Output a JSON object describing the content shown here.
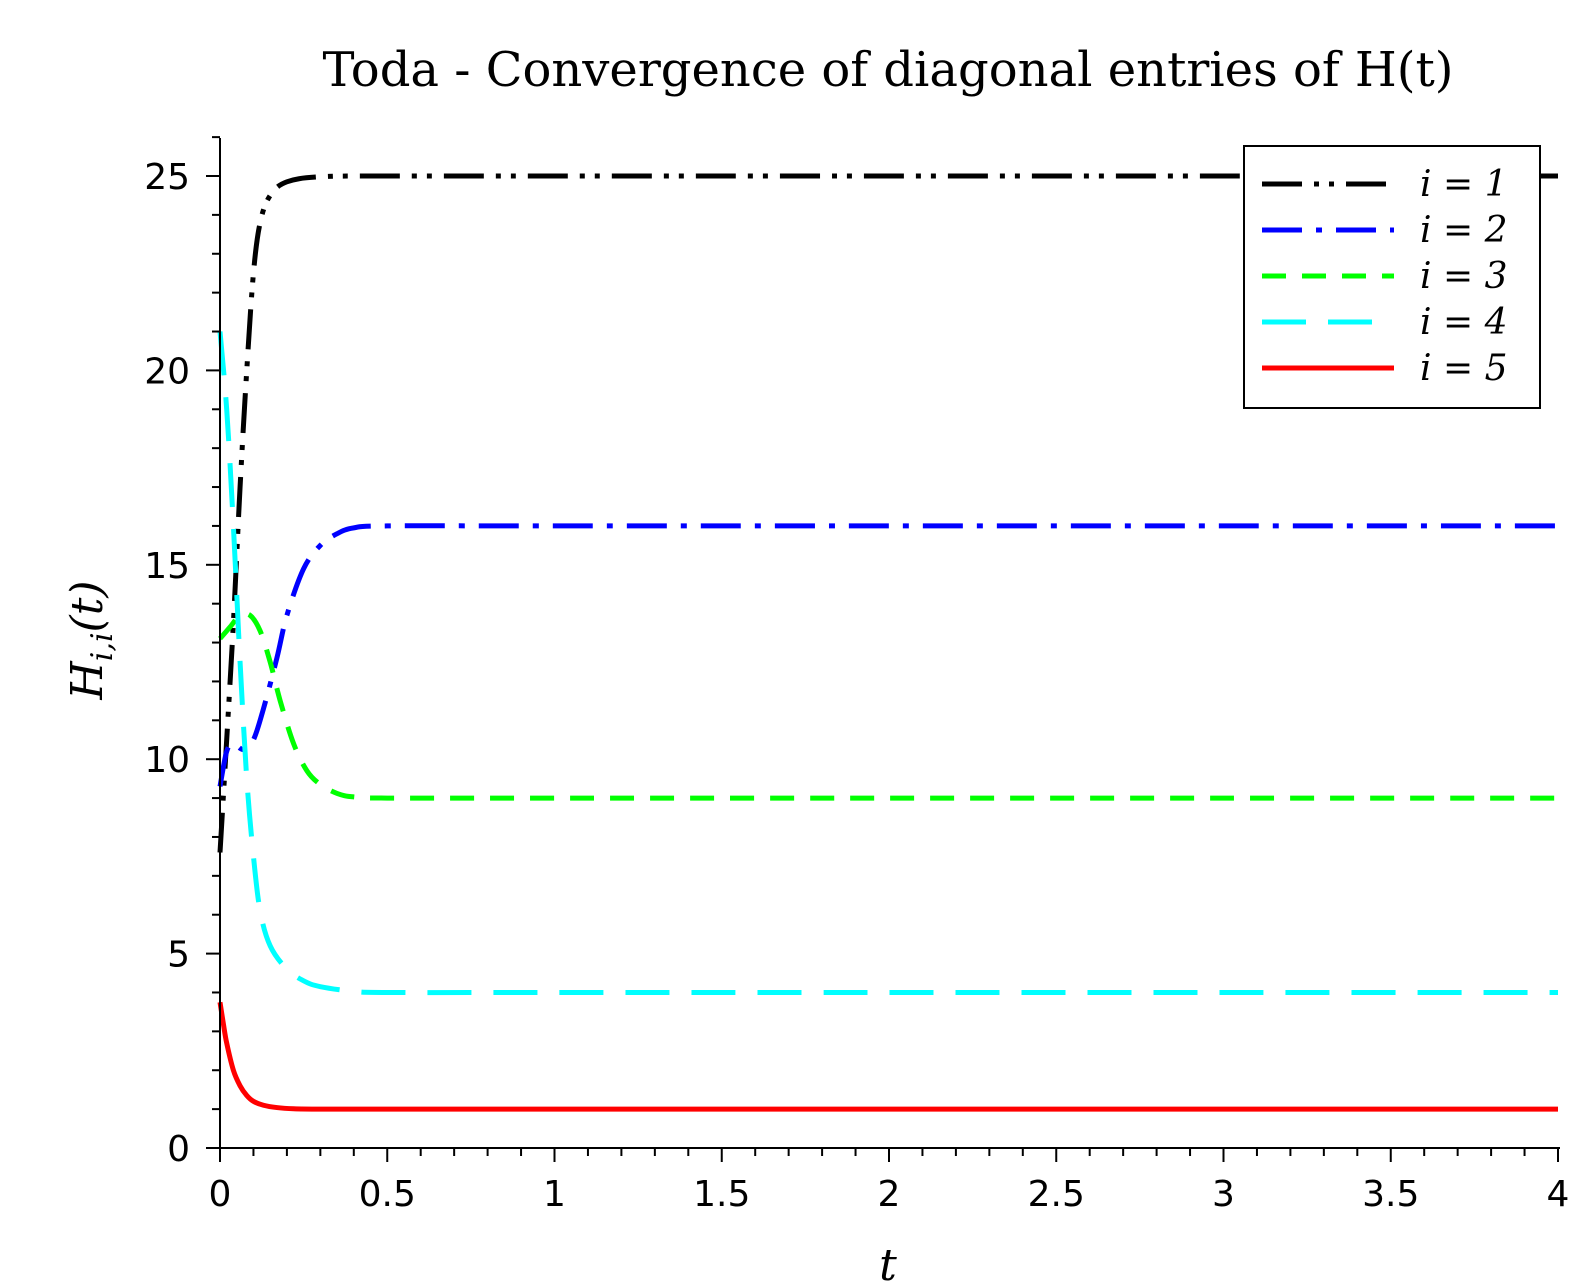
{
  "chart_data": {
    "type": "line",
    "title": "Toda - Convergence of diagonal entries of H(t)",
    "xlabel": "t",
    "ylabel": "H_{i,i}(t)",
    "xlim": [
      0,
      4
    ],
    "ylim": [
      0,
      26
    ],
    "x_ticks": [
      "0",
      "0.5",
      "1",
      "1.5",
      "2",
      "2.5",
      "3",
      "3.5",
      "4"
    ],
    "y_ticks": [
      "0",
      "5",
      "10",
      "15",
      "20",
      "25"
    ],
    "grid": false,
    "legend_position": "top-right",
    "series": [
      {
        "name": "i = 1",
        "color": "#000000",
        "style": "dash-dot-dot",
        "points": [
          [
            0,
            7.6
          ],
          [
            0.02,
            10.5
          ],
          [
            0.04,
            13.5
          ],
          [
            0.06,
            17.0
          ],
          [
            0.08,
            20.0
          ],
          [
            0.1,
            22.5
          ],
          [
            0.12,
            23.8
          ],
          [
            0.15,
            24.5
          ],
          [
            0.2,
            24.85
          ],
          [
            0.3,
            24.98
          ],
          [
            0.5,
            25.0
          ],
          [
            1,
            25.0
          ],
          [
            2,
            25.0
          ],
          [
            3,
            25.0
          ],
          [
            4,
            25.0
          ]
        ]
      },
      {
        "name": "i = 2",
        "color": "#0000ff",
        "style": "dash-dot",
        "points": [
          [
            0,
            9.3
          ],
          [
            0.02,
            10.2
          ],
          [
            0.04,
            10.4
          ],
          [
            0.07,
            10.25
          ],
          [
            0.1,
            10.5
          ],
          [
            0.13,
            11.3
          ],
          [
            0.17,
            12.6
          ],
          [
            0.2,
            13.7
          ],
          [
            0.25,
            14.9
          ],
          [
            0.3,
            15.5
          ],
          [
            0.35,
            15.8
          ],
          [
            0.4,
            15.95
          ],
          [
            0.5,
            16.0
          ],
          [
            1,
            16.0
          ],
          [
            2,
            16.0
          ],
          [
            3,
            16.0
          ],
          [
            4,
            16.0
          ]
        ]
      },
      {
        "name": "i = 3",
        "color": "#00ff00",
        "style": "dashed",
        "points": [
          [
            0,
            13.1
          ],
          [
            0.03,
            13.4
          ],
          [
            0.06,
            13.7
          ],
          [
            0.09,
            13.7
          ],
          [
            0.12,
            13.3
          ],
          [
            0.15,
            12.5
          ],
          [
            0.18,
            11.5
          ],
          [
            0.22,
            10.4
          ],
          [
            0.26,
            9.7
          ],
          [
            0.3,
            9.35
          ],
          [
            0.35,
            9.12
          ],
          [
            0.4,
            9.03
          ],
          [
            0.5,
            9.0
          ],
          [
            1,
            9.0
          ],
          [
            2,
            9.0
          ],
          [
            3,
            9.0
          ],
          [
            4,
            9.0
          ]
        ]
      },
      {
        "name": "i = 4",
        "color": "#00ffff",
        "style": "long-dash",
        "points": [
          [
            0,
            21.0
          ],
          [
            0.02,
            19.0
          ],
          [
            0.04,
            16.0
          ],
          [
            0.06,
            12.5
          ],
          [
            0.08,
            9.5
          ],
          [
            0.1,
            7.5
          ],
          [
            0.12,
            6.1
          ],
          [
            0.15,
            5.2
          ],
          [
            0.2,
            4.6
          ],
          [
            0.25,
            4.3
          ],
          [
            0.3,
            4.15
          ],
          [
            0.4,
            4.03
          ],
          [
            0.5,
            4.0
          ],
          [
            1,
            4.0
          ],
          [
            2,
            4.0
          ],
          [
            3,
            4.0
          ],
          [
            4,
            4.0
          ]
        ]
      },
      {
        "name": "i = 5",
        "color": "#ff0000",
        "style": "solid",
        "points": [
          [
            0,
            3.75
          ],
          [
            0.01,
            3.2
          ],
          [
            0.02,
            2.7
          ],
          [
            0.04,
            2.0
          ],
          [
            0.06,
            1.6
          ],
          [
            0.08,
            1.35
          ],
          [
            0.1,
            1.2
          ],
          [
            0.13,
            1.1
          ],
          [
            0.17,
            1.04
          ],
          [
            0.22,
            1.01
          ],
          [
            0.3,
            1.0
          ],
          [
            0.5,
            1.0
          ],
          [
            1,
            1.0
          ],
          [
            2,
            1.0
          ],
          [
            3,
            1.0
          ],
          [
            4,
            1.0
          ]
        ]
      }
    ]
  }
}
